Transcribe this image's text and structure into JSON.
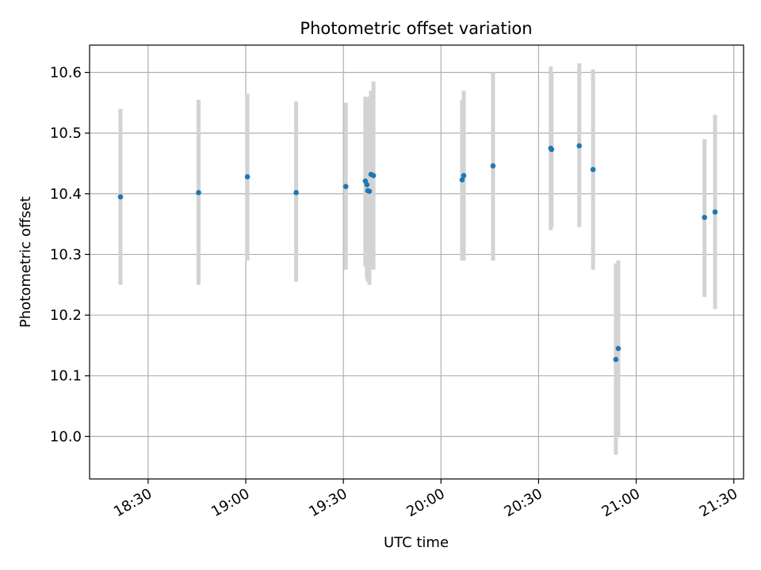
{
  "chart_data": {
    "type": "scatter",
    "title": "Photometric offset variation",
    "xlabel": "UTC time",
    "ylabel": "Photometric offset",
    "xlim": [
      "18:12",
      "21:33"
    ],
    "ylim": [
      9.93,
      10.645
    ],
    "grid": true,
    "x_ticks": [
      "18:30",
      "19:00",
      "19:30",
      "20:00",
      "20:30",
      "21:00",
      "21:30"
    ],
    "y_ticks": [
      "10.0",
      "10.1",
      "10.2",
      "10.3",
      "10.4",
      "10.5",
      "10.6"
    ],
    "marker_color": "#1f77b4",
    "errorbar_color": "#d3d3d3",
    "series": [
      {
        "points": [
          {
            "x": "18:21:30",
            "y": 10.395,
            "ylow": 10.25,
            "yhigh": 10.54
          },
          {
            "x": "18:45:30",
            "y": 10.402,
            "ylow": 10.25,
            "yhigh": 10.555
          },
          {
            "x": "19:00:30",
            "y": 10.428,
            "ylow": 10.29,
            "yhigh": 10.565
          },
          {
            "x": "19:15:30",
            "y": 10.402,
            "ylow": 10.255,
            "yhigh": 10.552
          },
          {
            "x": "19:30:45",
            "y": 10.412,
            "ylow": 10.275,
            "yhigh": 10.55
          },
          {
            "x": "19:36:45",
            "y": 10.421,
            "ylow": 10.28,
            "yhigh": 10.56
          },
          {
            "x": "19:37:15",
            "y": 10.415,
            "ylow": 10.26,
            "yhigh": 10.555
          },
          {
            "x": "19:37:30",
            "y": 10.405,
            "ylow": 10.255,
            "yhigh": 10.555
          },
          {
            "x": "19:38:00",
            "y": 10.404,
            "ylow": 10.25,
            "yhigh": 10.56
          },
          {
            "x": "19:38:30",
            "y": 10.432,
            "ylow": 10.28,
            "yhigh": 10.57
          },
          {
            "x": "19:39:15",
            "y": 10.43,
            "ylow": 10.275,
            "yhigh": 10.585
          },
          {
            "x": "20:06:30",
            "y": 10.423,
            "ylow": 10.29,
            "yhigh": 10.555
          },
          {
            "x": "20:07:00",
            "y": 10.43,
            "ylow": 10.29,
            "yhigh": 10.57
          },
          {
            "x": "20:16:00",
            "y": 10.446,
            "ylow": 10.29,
            "yhigh": 10.6
          },
          {
            "x": "20:33:45",
            "y": 10.475,
            "ylow": 10.34,
            "yhigh": 10.61
          },
          {
            "x": "20:34:00",
            "y": 10.473,
            "ylow": 10.345,
            "yhigh": 10.6
          },
          {
            "x": "20:42:30",
            "y": 10.479,
            "ylow": 10.345,
            "yhigh": 10.615
          },
          {
            "x": "20:46:45",
            "y": 10.44,
            "ylow": 10.275,
            "yhigh": 10.605
          },
          {
            "x": "20:53:45",
            "y": 10.127,
            "ylow": 9.97,
            "yhigh": 10.285
          },
          {
            "x": "20:54:30",
            "y": 10.145,
            "ylow": 10.0,
            "yhigh": 10.29
          },
          {
            "x": "21:21:00",
            "y": 10.361,
            "ylow": 10.23,
            "yhigh": 10.49
          },
          {
            "x": "21:24:15",
            "y": 10.37,
            "ylow": 10.21,
            "yhigh": 10.53
          }
        ]
      }
    ]
  }
}
